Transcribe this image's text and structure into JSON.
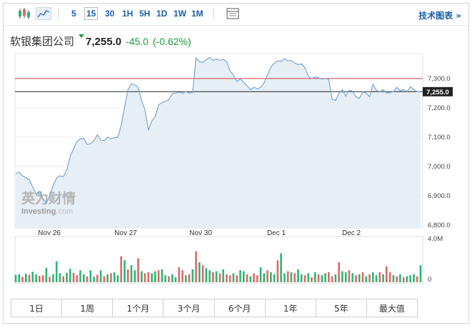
{
  "toolbar": {
    "intervals": [
      "5",
      "15",
      "30",
      "1H",
      "5H",
      "1D",
      "1W",
      "1M"
    ],
    "active_interval": "15",
    "tech_link": "技术图表 »"
  },
  "quote": {
    "name": "软银集团公司",
    "price": "7,255.0",
    "change": "-45.0",
    "change_pct": "(-0.62%)"
  },
  "watermark": {
    "cn": "英为财情",
    "en": "Investing",
    "en_suffix": ".com"
  },
  "ranges": [
    "1日",
    "1周",
    "1个月",
    "3个月",
    "6个月",
    "1年",
    "5年",
    "最大值"
  ],
  "colors": {
    "area_fill": "#e6eef6",
    "line": "#7aa6d2",
    "ref_line": "#d33a3a",
    "last_line": "#222222",
    "up": "#2bb673",
    "down": "#e06666",
    "positive": "#1a9c3a"
  },
  "chart_data": {
    "type": "area",
    "x_ticks": [
      "Nov 26",
      "Nov 27",
      "Nov 30",
      "Dec 1",
      "Dec 2"
    ],
    "y_ticks": [
      "6,800.0",
      "6,900.0",
      "7,000.0",
      "7,100.0",
      "7,200.0",
      "7,300.0"
    ],
    "ylim": [
      6790,
      7385
    ],
    "ref_line": 7300,
    "last_value": 7255,
    "last_label": "7,255.0",
    "volume_axis": [
      "4.0M",
      "0"
    ],
    "volume_max": 4.0,
    "price": [
      6975,
      6980,
      6968,
      6962,
      6955,
      6930,
      6905,
      6915,
      6890,
      6875,
      6900,
      6935,
      6960,
      6968,
      6965,
      6988,
      7035,
      7060,
      7085,
      7095,
      7095,
      7075,
      7078,
      7088,
      7108,
      7090,
      7088,
      7100,
      7095,
      7098,
      7100,
      7140,
      7202,
      7262,
      7282,
      7278,
      7270,
      7225,
      7192,
      7125,
      7155,
      7170,
      7210,
      7218,
      7222,
      7228,
      7248,
      7250,
      7253,
      7250,
      7255,
      7250,
      7252,
      7370,
      7358,
      7355,
      7365,
      7372,
      7362,
      7367,
      7362,
      7365,
      7358,
      7325,
      7312,
      7290,
      7298,
      7288,
      7275,
      7262,
      7270,
      7265,
      7270,
      7285,
      7312,
      7340,
      7352,
      7360,
      7358,
      7368,
      7360,
      7362,
      7352,
      7348,
      7350,
      7338,
      7308,
      7300,
      7305,
      7302,
      7298,
      7300,
      7297,
      7230,
      7225,
      7250,
      7262,
      7240,
      7260,
      7257,
      7238,
      7232,
      7255,
      7250,
      7238,
      7280,
      7260,
      7255,
      7262,
      7250,
      7252,
      7255,
      7270,
      7258,
      7262,
      7255,
      7272,
      7262,
      7255,
      7255
    ],
    "volume": [
      0.75,
      0.8,
      0.55,
      0.85,
      0.75,
      1.05,
      0.8,
      0.65,
      0.7,
      1.45,
      0.55,
      0.8,
      2.1,
      0.9,
      0.6,
      0.95,
      1.35,
      0.95,
      0.7,
      1.2,
      0.8,
      0.6,
      1.2,
      0.55,
      0.75,
      1.2,
      0.6,
      0.8,
      0.9,
      1.0,
      0.7,
      2.6,
      2.2,
      1.3,
      1.7,
      1.2,
      2.4,
      1.1,
      0.9,
      1.0,
      0.9,
      1.1,
      1.2,
      1.3,
      0.7,
      0.6,
      0.8,
      0.5,
      1.5,
      1.2,
      0.7,
      0.8,
      1.3,
      3.1,
      2.0,
      1.7,
      1.4,
      1.2,
      1.0,
      1.1,
      0.9,
      1.3,
      0.8,
      0.7,
      0.9,
      0.7,
      1.2,
      1.1,
      0.8,
      0.6,
      0.9,
      0.7,
      1.5,
      0.9,
      1.2,
      1.0,
      0.8,
      2.2,
      2.9,
      0.9,
      1.1,
      1.0,
      0.9,
      1.3,
      0.8,
      0.7,
      0.9,
      0.5,
      1.0,
      0.8,
      0.7,
      0.9,
      1.0,
      0.6,
      0.8,
      2.0,
      1.1,
      1.0,
      1.2,
      0.9,
      0.7,
      0.8,
      1.0,
      0.6,
      0.8,
      1.0,
      0.7,
      1.0,
      0.8,
      1.6,
      1.0,
      0.7,
      0.6,
      0.8,
      0.5,
      0.6,
      0.7,
      0.8,
      0.6,
      1.7
    ],
    "volume_dir": [
      0,
      0,
      1,
      0,
      1,
      0,
      0,
      1,
      1,
      0,
      1,
      0,
      0,
      0,
      1,
      0,
      0,
      1,
      1,
      0,
      0,
      1,
      0,
      0,
      1,
      0,
      1,
      0,
      1,
      0,
      0,
      1,
      0,
      1,
      0,
      0,
      1,
      0,
      1,
      1,
      0,
      0,
      1,
      0,
      0,
      1,
      0,
      0,
      1,
      1,
      0,
      1,
      0,
      1,
      0,
      1,
      0,
      0,
      1,
      0,
      1,
      0,
      1,
      1,
      0,
      1,
      0,
      0,
      1,
      0,
      1,
      1,
      0,
      0,
      1,
      0,
      0,
      1,
      0,
      0,
      1,
      0,
      1,
      0,
      0,
      1,
      0,
      1,
      0,
      1,
      0,
      0,
      1,
      1,
      0,
      1,
      0,
      0,
      1,
      0,
      1,
      0,
      1,
      0,
      1,
      0,
      0,
      1,
      0,
      1,
      1,
      0,
      1,
      0,
      1,
      0,
      0,
      0,
      1,
      0
    ]
  }
}
